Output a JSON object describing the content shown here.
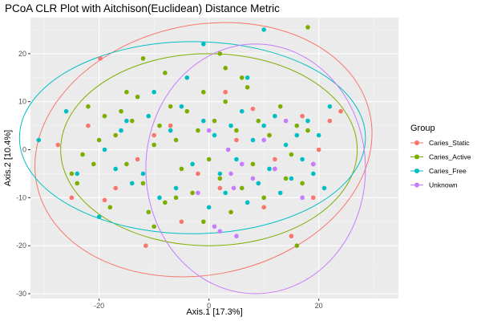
{
  "chart_data": {
    "type": "scatter",
    "title": "PCoA CLR Plot with Aitchison(Euclidean) Distance Metric",
    "xlabel": "Axis.1   [17.3%]",
    "ylabel": "Axis.2   [10.4%]",
    "xlim": [
      -32.5,
      34.5
    ],
    "ylim": [
      -31,
      27.5
    ],
    "x_ticks": [
      -20,
      0,
      20
    ],
    "y_ticks": [
      -30,
      -20,
      -10,
      0,
      10,
      20
    ],
    "x_tick_labels": [
      "-20",
      "0",
      "20"
    ],
    "y_tick_labels": [
      "-30",
      "-20",
      "-10",
      "0",
      "10",
      "20"
    ],
    "grid": true,
    "panel_background": "#ebebeb",
    "legend": {
      "title": "Group",
      "placement": "right",
      "entries": [
        "Caries_Static",
        "Caries_Active",
        "Caries_Free",
        "Unknown"
      ]
    },
    "series": [
      {
        "name": "Caries_Static",
        "color": "#f8766d",
        "ellipse": {
          "cx": -1,
          "cy": 0,
          "rx": 31,
          "ry": 26,
          "angle": 12
        },
        "points": [
          [
            -19.8,
            19
          ],
          [
            -27.5,
            1
          ],
          [
            -25,
            -10
          ],
          [
            -19,
            -10.5
          ],
          [
            -13,
            -2
          ],
          [
            -11.5,
            -20
          ],
          [
            -7,
            5
          ],
          [
            3,
            12
          ],
          [
            8,
            8.5
          ],
          [
            11,
            3
          ],
          [
            17,
            7
          ],
          [
            22,
            6
          ],
          [
            24,
            8
          ],
          [
            -5,
            -15
          ],
          [
            2,
            -8
          ],
          [
            15,
            -18
          ],
          [
            19,
            -10
          ],
          [
            -10,
            3
          ],
          [
            -17,
            -8
          ],
          [
            10,
            -12
          ],
          [
            20,
            0
          ],
          [
            -2,
            -5
          ],
          [
            5,
            2
          ],
          [
            12,
            -2
          ],
          [
            -22,
            5
          ]
        ]
      },
      {
        "name": "Caries_Active",
        "color": "#7cae00",
        "ellipse": {
          "cx": 0,
          "cy": 0,
          "rx": 27,
          "ry": 20,
          "angle": 0
        },
        "points": [
          [
            -25,
            -5
          ],
          [
            -24,
            -7
          ],
          [
            -21,
            -3
          ],
          [
            -20,
            2
          ],
          [
            -19,
            7
          ],
          [
            -18,
            -12
          ],
          [
            -17,
            3
          ],
          [
            -16,
            8
          ],
          [
            -15,
            -3
          ],
          [
            -14,
            6
          ],
          [
            -13,
            11
          ],
          [
            -12,
            -7
          ],
          [
            -11,
            -13
          ],
          [
            -10,
            1
          ],
          [
            -9,
            5
          ],
          [
            -8,
            -11
          ],
          [
            -7,
            9
          ],
          [
            -6,
            2
          ],
          [
            -5,
            -4
          ],
          [
            -4,
            8
          ],
          [
            -3,
            -9
          ],
          [
            -2,
            4
          ],
          [
            -1,
            12
          ],
          [
            0,
            -2
          ],
          [
            1,
            6
          ],
          [
            2,
            -6
          ],
          [
            3,
            10
          ],
          [
            4,
            -13
          ],
          [
            5,
            4
          ],
          [
            6,
            -8
          ],
          [
            7,
            13
          ],
          [
            8,
            -3
          ],
          [
            9,
            6
          ],
          [
            10,
            -10
          ],
          [
            11,
            3
          ],
          [
            12,
            -4
          ],
          [
            13,
            9
          ],
          [
            14,
            -6
          ],
          [
            15,
            -1
          ],
          [
            16,
            5
          ],
          [
            17,
            -7
          ],
          [
            18,
            4
          ],
          [
            19,
            -3
          ],
          [
            -22,
            9
          ],
          [
            -23,
            -1
          ],
          [
            -15,
            12
          ],
          [
            -10,
            -16
          ],
          [
            -6,
            -10
          ],
          [
            -1,
            -15
          ],
          [
            3,
            17
          ],
          [
            6,
            15
          ],
          [
            -8,
            16
          ],
          [
            2,
            20
          ],
          [
            16,
            -20
          ],
          [
            18,
            25.5
          ],
          [
            -12,
            19
          ]
        ]
      },
      {
        "name": "Caries_Free",
        "color": "#00bfc4",
        "ellipse": {
          "cx": -3,
          "cy": 2.5,
          "rx": 31.5,
          "ry": 20,
          "angle": 0
        },
        "points": [
          [
            -31,
            2
          ],
          [
            -26,
            8
          ],
          [
            -24,
            -5
          ],
          [
            -20,
            -14
          ],
          [
            -17,
            -4
          ],
          [
            -16,
            4
          ],
          [
            -15,
            6
          ],
          [
            -12,
            -5
          ],
          [
            -11,
            7
          ],
          [
            -9,
            -10
          ],
          [
            -7,
            4
          ],
          [
            -6,
            -8
          ],
          [
            -5,
            9
          ],
          [
            -3,
            -3
          ],
          [
            -1,
            6
          ],
          [
            0,
            -12
          ],
          [
            1,
            3
          ],
          [
            2,
            -5
          ],
          [
            3,
            -9
          ],
          [
            4,
            5
          ],
          [
            5,
            -2
          ],
          [
            6,
            8
          ],
          [
            7,
            -11
          ],
          [
            8,
            2
          ],
          [
            9,
            -7
          ],
          [
            10,
            5
          ],
          [
            11,
            -4
          ],
          [
            12,
            7
          ],
          [
            13,
            -9
          ],
          [
            14,
            1
          ],
          [
            15,
            -6
          ],
          [
            16,
            3
          ],
          [
            17,
            -2
          ],
          [
            18,
            6
          ],
          [
            19,
            -5
          ],
          [
            20,
            3
          ],
          [
            21,
            -8
          ],
          [
            22,
            9
          ],
          [
            -10,
            12
          ],
          [
            -4,
            15
          ],
          [
            -1,
            22
          ],
          [
            10,
            25
          ],
          [
            7,
            15
          ],
          [
            -14,
            -7
          ],
          [
            -19,
            0
          ]
        ]
      },
      {
        "name": "Unknown",
        "color": "#c77cff",
        "ellipse": {
          "cx": 8.5,
          "cy": -4,
          "rx": 20,
          "ry": 26,
          "angle": 0
        },
        "points": [
          [
            1,
            -16
          ],
          [
            2,
            -17
          ],
          [
            5,
            -18
          ],
          [
            4,
            -5
          ],
          [
            4.5,
            -8
          ],
          [
            3.5,
            0
          ],
          [
            6,
            -3
          ],
          [
            8,
            -6
          ],
          [
            10,
            2
          ],
          [
            12,
            -4
          ],
          [
            14,
            6
          ],
          [
            17,
            -10
          ],
          [
            19,
            -3
          ],
          [
            -2,
            -9
          ],
          [
            0,
            4
          ]
        ]
      }
    ]
  }
}
